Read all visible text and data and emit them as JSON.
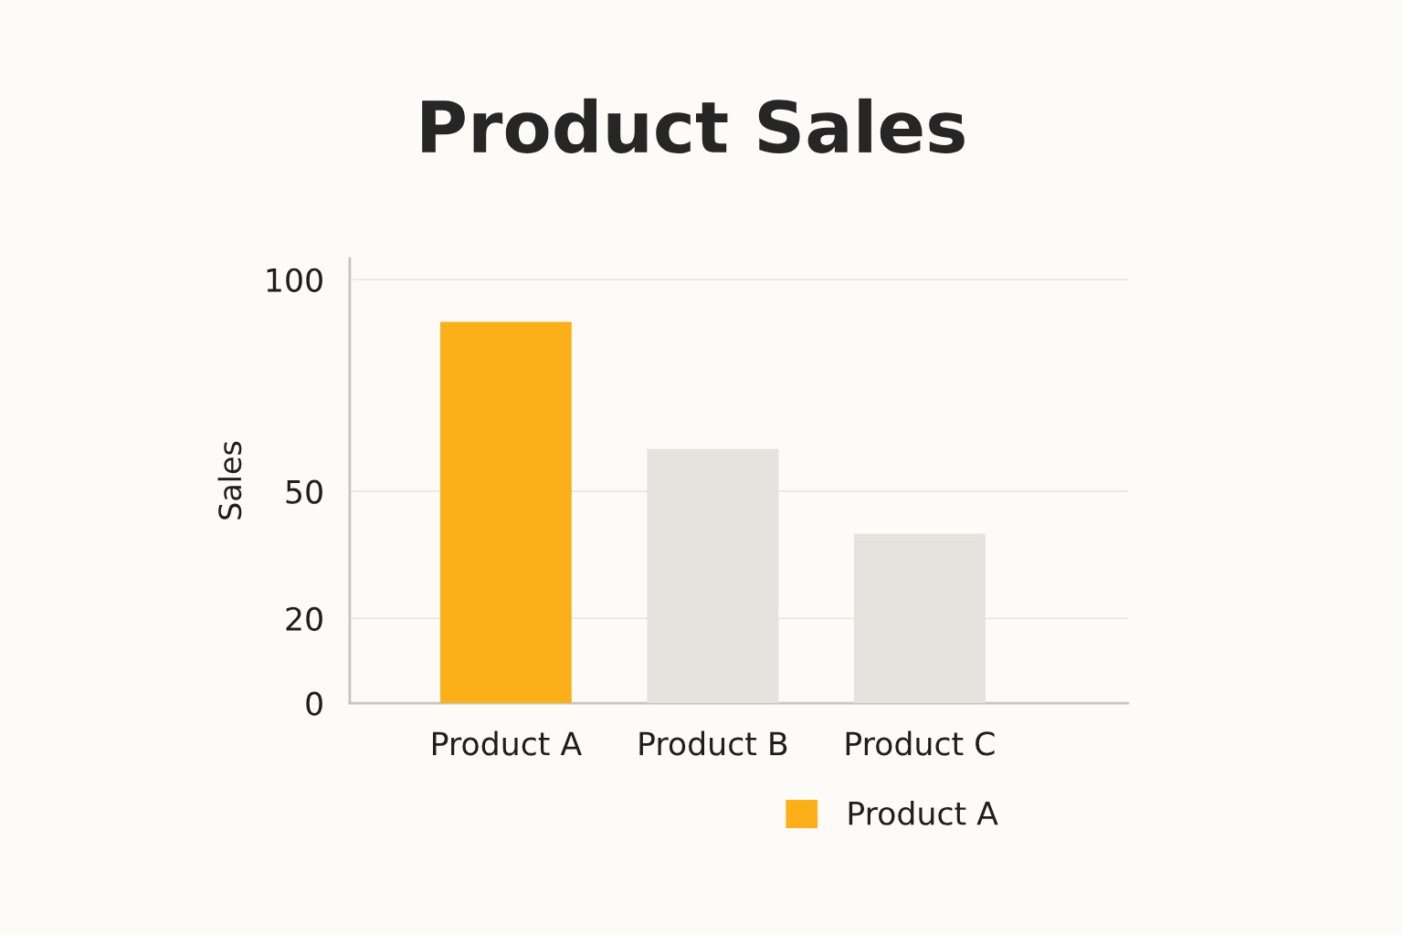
{
  "chart_data": {
    "type": "bar",
    "title": "Product Sales",
    "ylabel": "Sales",
    "categories": [
      "Product A",
      "Product B",
      "Product C"
    ],
    "series": [
      {
        "name": "Product A",
        "color": "#fbb01a",
        "values": [
          90,
          null,
          null
        ]
      },
      {
        "color": "#e6e2de",
        "values": [
          null,
          60,
          40
        ]
      }
    ],
    "stacked": true,
    "ylim": [
      0,
      105
    ],
    "yticks": [
      0,
      20,
      50,
      100
    ],
    "grid": "y",
    "legend": "bottom right"
  }
}
